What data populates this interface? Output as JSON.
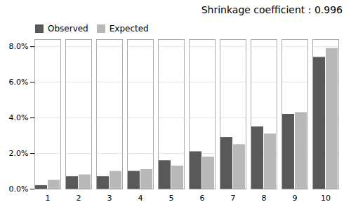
{
  "chart_data": {
    "type": "bar",
    "title": "Shrinkage coefficient : 0.996",
    "categories": [
      1,
      2,
      3,
      4,
      5,
      6,
      7,
      8,
      9,
      10
    ],
    "series": [
      {
        "name": "Observed",
        "color": "#595959",
        "values": [
          0.002,
          0.007,
          0.007,
          0.01,
          0.016,
          0.021,
          0.029,
          0.035,
          0.042,
          0.074
        ]
      },
      {
        "name": "Expected",
        "color": "#b8b8b8",
        "values": [
          0.005,
          0.008,
          0.01,
          0.011,
          0.013,
          0.018,
          0.025,
          0.031,
          0.043,
          0.079
        ]
      }
    ],
    "ylim": [
      0,
      0.084
    ],
    "yticks": [
      {
        "value": 0.0,
        "label": "0.0%"
      },
      {
        "value": 0.02,
        "label": "2.0%"
      },
      {
        "value": 0.04,
        "label": "4.0%"
      },
      {
        "value": 0.06,
        "label": "6.0%"
      },
      {
        "value": 0.08,
        "label": "8.0%"
      }
    ],
    "grid": true,
    "legend": "upper left"
  }
}
